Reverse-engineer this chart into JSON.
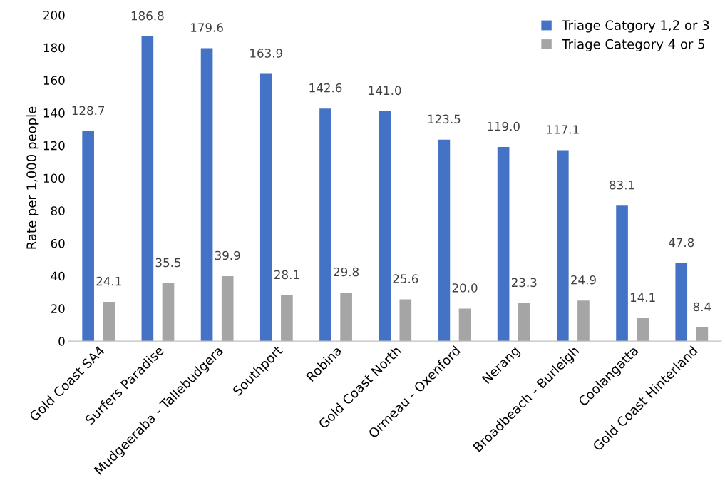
{
  "chart_data": {
    "type": "bar",
    "ylabel": "Rate per 1,000 people",
    "categories": [
      "Gold Coast SA4",
      "Surfers Paradise",
      "Mudgeeraba - Tallebudgera",
      "Southport",
      "Robina",
      "Gold Coast North",
      "Ormeau - Oxenford",
      "Nerang",
      "Broadbeach - Burleigh",
      "Coolangatta",
      "Gold Coast Hinterland"
    ],
    "series": [
      {
        "name": "Triage Catgory 1,2 or 3",
        "color": "#4472c4",
        "values": [
          128.7,
          186.8,
          179.6,
          163.9,
          142.6,
          141.0,
          123.5,
          119.0,
          117.1,
          83.1,
          47.8
        ],
        "value_labels": [
          "128.7",
          "186.8",
          "179.6",
          "163.9",
          "142.6",
          "141.0",
          "123.5",
          "119.0",
          "117.1",
          "83.1",
          "47.8"
        ]
      },
      {
        "name": "Triage Category 4 or 5",
        "color": "#a5a5a5",
        "values": [
          24.1,
          35.5,
          39.9,
          28.1,
          29.8,
          25.6,
          20.0,
          23.3,
          24.9,
          14.1,
          8.4
        ],
        "value_labels": [
          "24.1",
          "35.5",
          "39.9",
          "28.1",
          "29.8",
          "25.6",
          "20.0",
          "23.3",
          "24.9",
          "14.1",
          "8.4"
        ]
      }
    ],
    "ylim": [
      0,
      200
    ],
    "yticks": [
      0,
      20,
      40,
      60,
      80,
      100,
      120,
      140,
      160,
      180,
      200
    ],
    "grid": false,
    "legend": "top right"
  }
}
